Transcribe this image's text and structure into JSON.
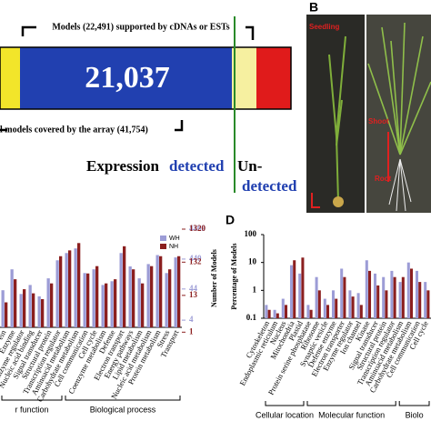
{
  "panel_a": {
    "top_label": "Models (22,491) supported by cDNAs or ESTs",
    "bar_value": "21,037",
    "bottom_label": "l models covered by the array (41,754)",
    "expression": "Expression",
    "detected": "detected",
    "undetected_1": "Un-",
    "undetected_2": "detected"
  },
  "panel_b": {
    "label": "B",
    "seedling": "Seedling",
    "shoot": "Shoot",
    "root": "Root"
  },
  "chart_data": [
    {
      "type": "bar",
      "log_scale": true,
      "y_label": "Number of Models",
      "categories": [
        "ein",
        "Enzyme",
        "Enzyme regulator",
        "Nucleic acid binding",
        "Signal transducer",
        "Structural protein",
        "Transcription regulator",
        "Aminoacid metabolism",
        "Carbohydrate metabolism",
        "Cell communication",
        "Cell cycle",
        "Coenzyme metabolism",
        "Defense",
        "Electron transport",
        "Energy pathways",
        "Lipid metabolism",
        "Nucleic acid metabolism",
        "Protein metabolism",
        "Stress",
        "Transport"
      ],
      "group_labels": [
        "r function",
        "Biological process"
      ],
      "series": [
        {
          "name": "WH",
          "color": "#9c9cd6",
          "values": [
            40,
            200,
            30,
            60,
            25,
            100,
            400,
            700,
            1000,
            150,
            200,
            60,
            80,
            700,
            250,
            100,
            300,
            600,
            150,
            500
          ]
        },
        {
          "name": "NH",
          "color": "#8b1f1f",
          "axis": "y2",
          "values": [
            8,
            40,
            20,
            15,
            10,
            30,
            200,
            300,
            500,
            60,
            100,
            30,
            40,
            400,
            80,
            30,
            100,
            200,
            80,
            200
          ]
        }
      ],
      "ylim": [
        2.3,
        4409
      ],
      "yticks": [
        4409,
        440,
        44,
        4
      ],
      "y2lim": [
        1.4,
        1320
      ],
      "y2ticks": [
        1320,
        132,
        13,
        1
      ]
    },
    {
      "type": "bar",
      "log_scale": true,
      "panel_label": "D",
      "y_label": "Percentage of Models",
      "categories": [
        "Cytoskeleton",
        "Endoplasmic reticulum",
        "Nucleus",
        "Mitochondria",
        "Plastid",
        "Protein serine phosphatase",
        "Ribosome",
        "Synaptic vesicle",
        "Defense enzyme",
        "Electron transporter",
        "Enzyme regulator",
        "Ion channel",
        "Kinase",
        "Signal transducer",
        "Structural protein",
        "Transcription regulator",
        "Aminoacid metabolism",
        "Carbohydrate metabolism",
        "Cell communication",
        "Cell cycle"
      ],
      "group_labels": [
        "Cellular location",
        "Molecular function",
        "Biolo"
      ],
      "series": [
        {
          "name": "WH",
          "color": "#9c9cd6",
          "values": [
            0.3,
            0.2,
            0.5,
            8,
            4,
            0.3,
            3,
            0.5,
            1,
            6,
            1,
            0.8,
            12,
            4,
            3,
            5,
            2,
            10,
            5,
            2
          ]
        },
        {
          "name": "NH",
          "color": "#8b1f1f",
          "values": [
            0.2,
            0.15,
            0.3,
            12,
            15,
            0.2,
            1,
            0.3,
            0.5,
            3,
            0.6,
            0.3,
            5,
            1.5,
            1,
            3,
            3,
            6,
            2,
            1
          ]
        }
      ],
      "ylim": [
        0.1,
        100
      ],
      "yticks": [
        100,
        10,
        1,
        0.1
      ]
    }
  ]
}
